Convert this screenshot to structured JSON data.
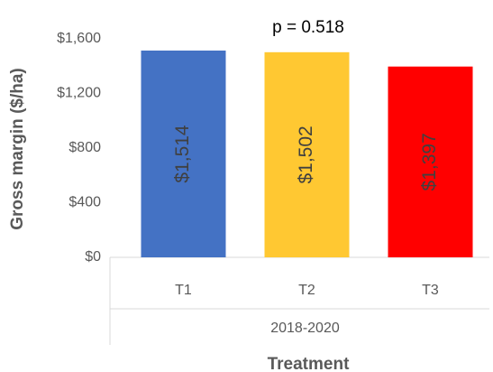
{
  "chart_data": {
    "type": "bar",
    "annotation": "p = 0.518",
    "categories": [
      "T1",
      "T2",
      "T3"
    ],
    "category_group": "2018-2020",
    "values": [
      1514,
      1502,
      1397
    ],
    "value_labels": [
      "$1,514",
      "$1,502",
      "$1,397"
    ],
    "colors": [
      "#4472c4",
      "#ffc832",
      "#ff0000"
    ],
    "x_label": "Treatment",
    "y_label": "Gross margin ($/ha)",
    "ylim": [
      0,
      1600
    ],
    "yticks": [
      {
        "value": 0,
        "label": "$0"
      },
      {
        "value": 400,
        "label": "$400"
      },
      {
        "value": 800,
        "label": "$800"
      },
      {
        "value": 1200,
        "label": "$1,200"
      },
      {
        "value": 1600,
        "label": "$1,600"
      }
    ],
    "grid": false
  }
}
